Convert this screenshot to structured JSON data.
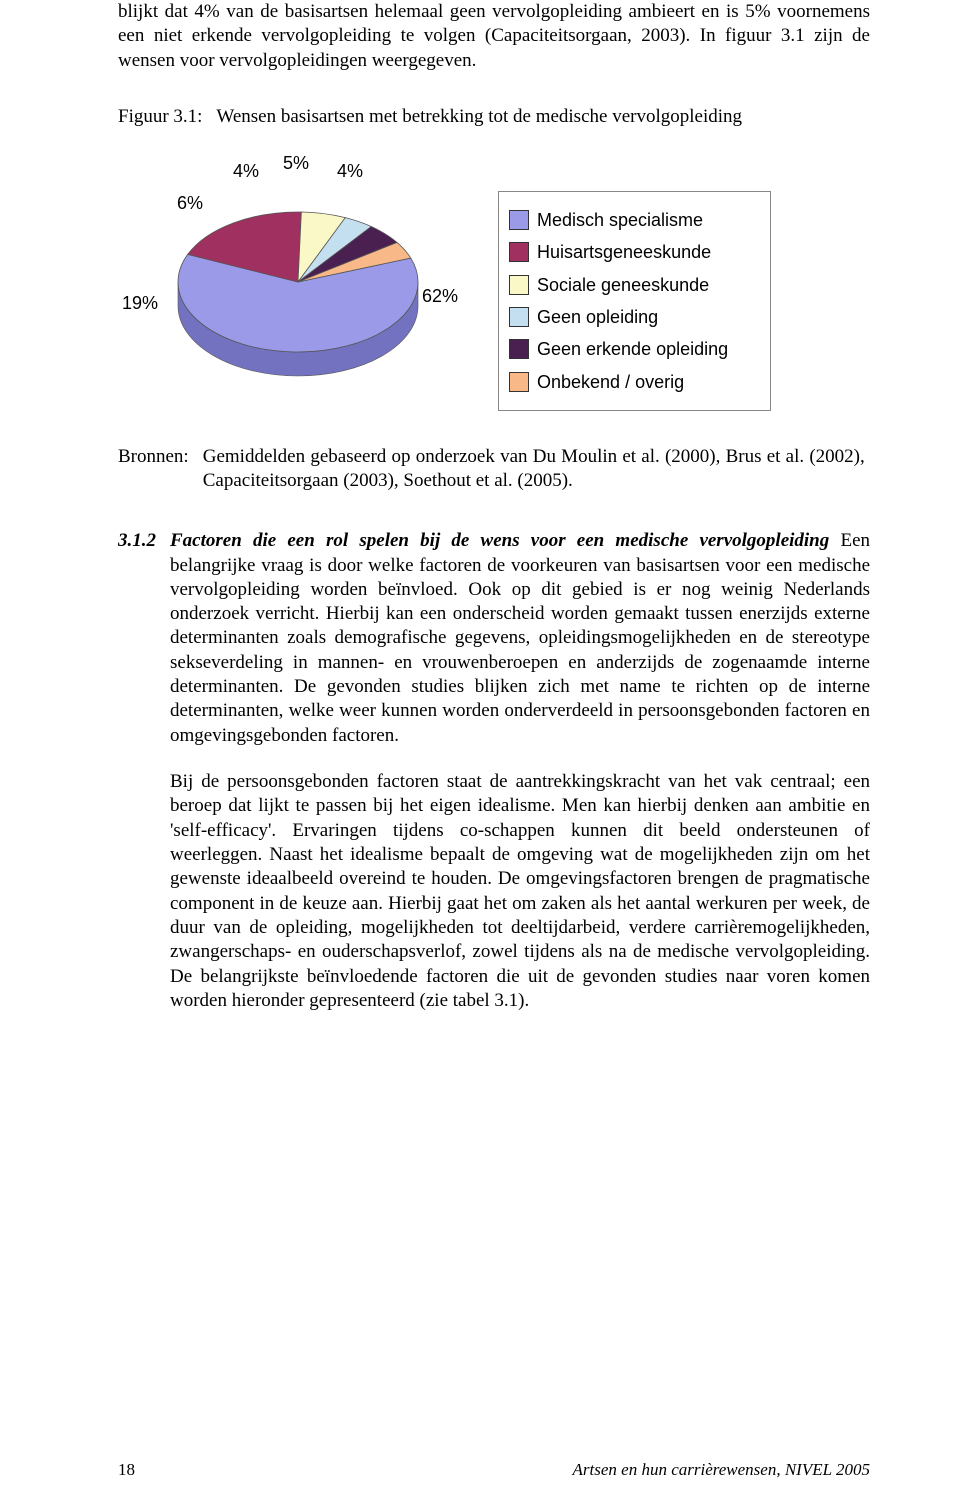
{
  "intro": {
    "p1": "blijkt dat 4% van de basisartsen helemaal geen vervolgopleiding ambieert en is 5% voornemens een niet erkende vervolgopleiding te volgen (Capaciteitsorgaan, 2003). In figuur 3.1 zijn de wensen voor vervolgopleidingen weergegeven."
  },
  "figure": {
    "label": "Figuur 3.1:",
    "caption": "Wensen basisartsen met betrekking tot de medische vervolgopleiding"
  },
  "chart": {
    "type": "pie-3d",
    "label_font": "Arial",
    "label_fontsize": 18,
    "data_labels": [
      "62%",
      "19%",
      "6%",
      "4%",
      "5%",
      "4%"
    ],
    "slices": [
      {
        "label": "Medisch specialisme",
        "value": 62,
        "color": "#9a9ae8",
        "swatch": "#9a9ae8"
      },
      {
        "label": "Huisartsgeneeskunde",
        "value": 19,
        "color": "#a03060",
        "swatch": "#a03060"
      },
      {
        "label": "Sociale geneeskunde",
        "value": 6,
        "color": "#fbf8c8",
        "swatch": "#fbf8c8"
      },
      {
        "label": "Geen opleiding",
        "value": 4,
        "color": "#c4e0f0",
        "swatch": "#c4e0f0"
      },
      {
        "label": "Geen erkende opleiding",
        "value": 5,
        "color": "#4a2050",
        "swatch": "#4a2050"
      },
      {
        "label": "Onbekend / overig",
        "value": 4,
        "color": "#f8b888",
        "swatch": "#f8b888"
      }
    ],
    "legend_border": "#888888",
    "background_color": "#ffffff"
  },
  "sources": {
    "label": "Bronnen:",
    "text": "Gemiddelden gebaseerd op onderzoek van Du Moulin et al. (2000), Brus et al. (2002), Capaciteitsorgaan (2003), Soethout et al. (2005)."
  },
  "section": {
    "number": "3.1.2",
    "heading": "Factoren die een rol spelen bij de wens voor een medische vervolgopleiding",
    "body1": "Een belangrijke vraag is door welke factoren de voorkeuren van basisartsen voor een medische vervolgopleiding worden beïnvloed. Ook op dit gebied is er nog weinig Nederlands onderzoek verricht. Hierbij kan een onderscheid worden gemaakt tussen enerzijds externe determinanten zoals demografische gegevens, opleidingsmogelijkheden en de stereotype sekseverdeling in mannen- en vrouwenberoepen en anderzijds de zogenaamde interne determinanten. De gevonden studies blijken zich met name te richten op de interne determinanten, welke weer kunnen worden onderverdeeld in persoonsgebonden factoren en omgevingsgebonden factoren.",
    "body2": "Bij de persoonsgebonden factoren staat de aantrekkingskracht van het vak centraal; een beroep dat lijkt te passen bij het eigen idealisme. Men kan hierbij denken aan ambitie en 'self-efficacy'. Ervaringen tijdens co-schappen kunnen dit beeld ondersteunen of weerleggen. Naast het idealisme bepaalt de omgeving wat de mogelijkheden zijn om het gewenste ideaalbeeld overeind te houden. De omgevingsfactoren brengen de pragmatische component in de keuze aan. Hierbij gaat het om zaken als het aantal werkuren per week, de duur van de opleiding, mogelijkheden tot deeltijdarbeid, verdere carrièremogelijkheden, zwangerschaps- en ouderschapsverlof, zowel tijdens als na de medische vervolgopleiding. De belangrijkste beïnvloedende factoren die uit de gevonden studies naar voren komen worden hieronder gepresenteerd (zie tabel 3.1)."
  },
  "footer": {
    "page": "18",
    "source": "Artsen en hun carrièrewensen, NIVEL 2005"
  }
}
